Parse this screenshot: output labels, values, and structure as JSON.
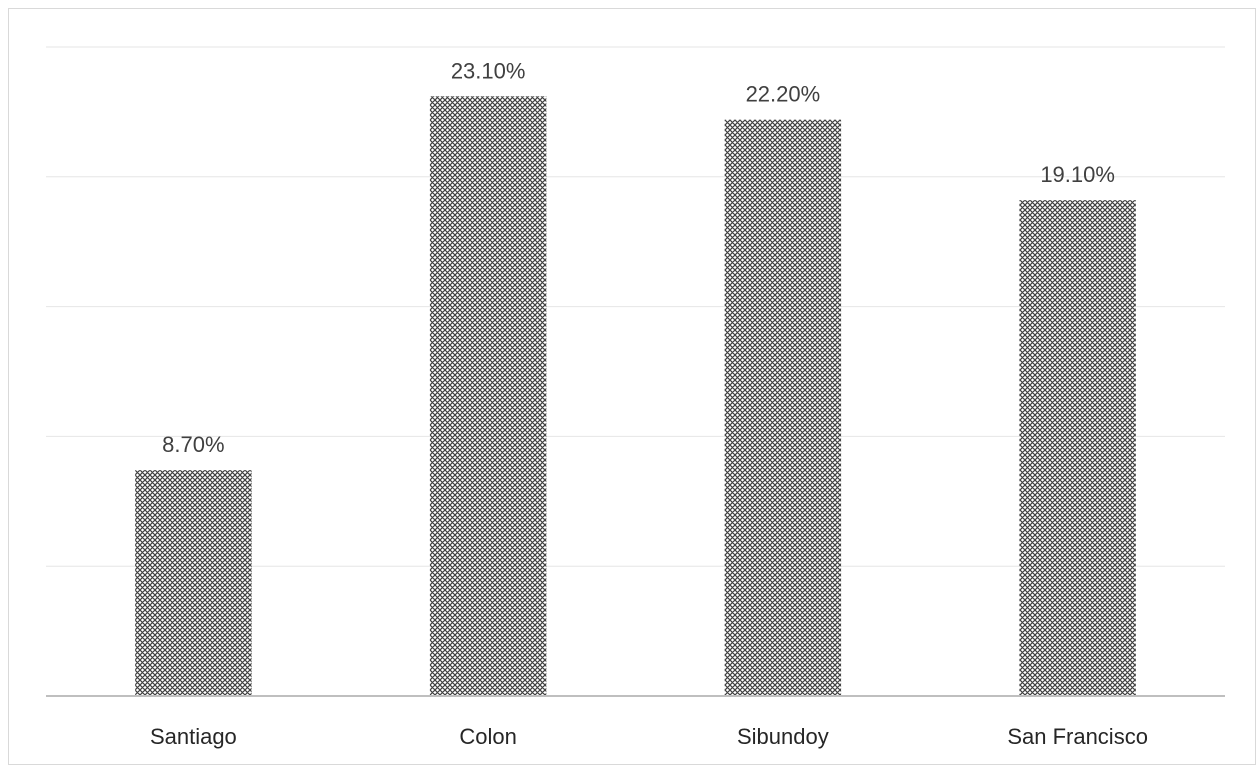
{
  "chart_data": {
    "type": "bar",
    "title": "",
    "xlabel": "",
    "ylabel": "",
    "categories": [
      "Santiago",
      "Colon",
      "Sibundoy",
      "San Francisco"
    ],
    "values": [
      8.7,
      23.1,
      22.2,
      19.1
    ],
    "data_labels": [
      "8.70%",
      "23.10%",
      "22.20%",
      "19.10%"
    ],
    "ylim": [
      0,
      25
    ],
    "y_gridlines": [
      5,
      10,
      15,
      20,
      25
    ],
    "grid": true,
    "legend": "none",
    "bar_pattern": "crosshatch",
    "colors": {
      "bar": "#404040",
      "bar_bg": "#ffffff",
      "grid": "#e6e6e6",
      "axis": "#bfbfbf",
      "text": "#404040",
      "border": "#d9d9d9"
    }
  }
}
